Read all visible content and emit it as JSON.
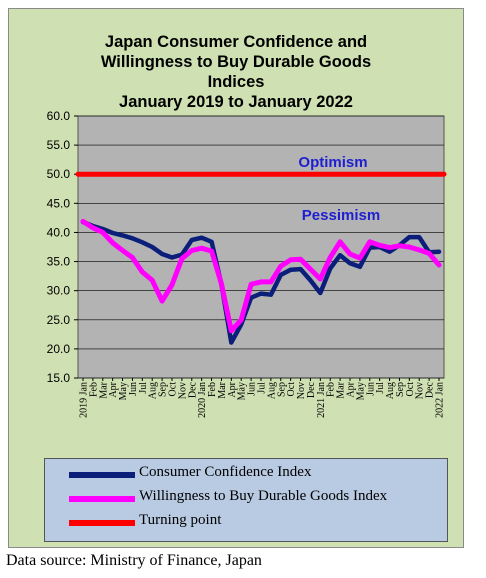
{
  "chart_data": {
    "type": "line",
    "title_lines": [
      "Japan Consumer Confidence and",
      "Willingness to Buy Durable Goods",
      "Indices",
      "January 2019 to January 2022"
    ],
    "ylim": [
      15,
      60
    ],
    "yticks": [
      "60.0",
      "55.0",
      "50.0",
      "45.0",
      "40.0",
      "35.0",
      "30.0",
      "25.0",
      "20.0",
      "15.0"
    ],
    "x_labels": [
      "2019 Jan",
      "Feb",
      "Mar",
      "Apr",
      "May",
      "Jun",
      "Jul",
      "Aug",
      "Sep",
      "Oct",
      "Nov",
      "Dec",
      "2020 Jan",
      "Feb",
      "Mar",
      "Apr",
      "May",
      "Jun",
      "Jul",
      "Aug",
      "Sep",
      "Oct",
      "Nov",
      "Dec",
      "2021 Jan",
      "Feb",
      "Mar",
      "Apr",
      "May",
      "Jun",
      "Jul",
      "Aug",
      "Sep",
      "Oct",
      "Nov",
      "Dec",
      "2022 Jan"
    ],
    "series": [
      {
        "name": "Consumer Confidence Index",
        "color": "#0b1f7a",
        "values": [
          41.8,
          41.1,
          40.6,
          39.9,
          39.5,
          39.0,
          38.3,
          37.5,
          36.3,
          35.7,
          36.2,
          38.7,
          39.1,
          38.4,
          31.1,
          21.1,
          24.2,
          28.8,
          29.5,
          29.3,
          32.7,
          33.6,
          33.7,
          31.8,
          29.6,
          33.8,
          36.1,
          34.7,
          34.1,
          37.4,
          37.5,
          36.7,
          37.8,
          39.2,
          39.2,
          36.6,
          36.7
        ]
      },
      {
        "name": "Willingness to Buy Durable Goods Index",
        "color": "#ff00ff",
        "values": [
          41.9,
          40.8,
          40.0,
          38.2,
          36.9,
          35.7,
          33.2,
          31.8,
          28.2,
          31.0,
          35.5,
          36.9,
          37.3,
          36.8,
          31.2,
          23.1,
          25.0,
          31.1,
          31.5,
          31.5,
          34.2,
          35.3,
          35.4,
          33.7,
          32.0,
          35.7,
          38.4,
          36.3,
          35.6,
          38.4,
          37.8,
          37.4,
          37.7,
          37.5,
          37.0,
          36.4,
          34.4
        ]
      },
      {
        "name": "Turning point",
        "color": "#ff0000",
        "values": [
          50,
          50,
          50,
          50,
          50,
          50,
          50,
          50,
          50,
          50,
          50,
          50,
          50,
          50,
          50,
          50,
          50,
          50,
          50,
          50,
          50,
          50,
          50,
          50,
          50,
          50,
          50,
          50,
          50,
          50,
          50,
          50,
          50,
          50,
          50,
          50,
          50
        ]
      }
    ],
    "annotations": {
      "optimism": "Optimism",
      "pessimism": "Pessimism"
    },
    "source": "Data source: Ministry of Finance, Japan"
  }
}
